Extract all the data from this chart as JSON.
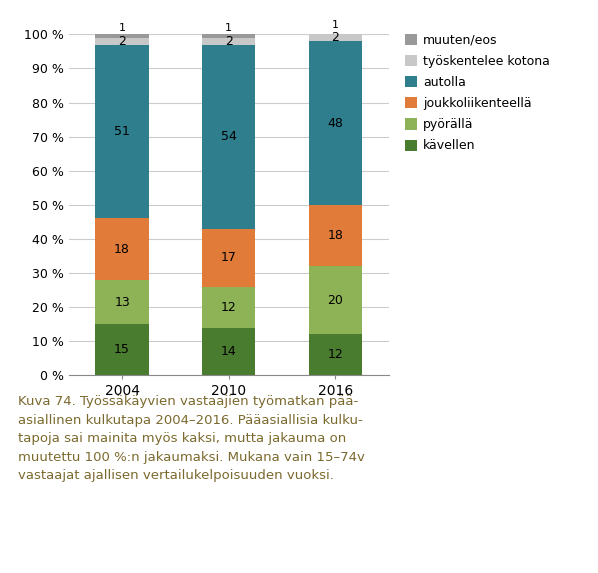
{
  "years": [
    "2004",
    "2010",
    "2016"
  ],
  "categories": [
    "kävellen",
    "pyörällä",
    "joukkoliikenteellä",
    "autolla",
    "työskentelee kotona",
    "muuten/eos"
  ],
  "values": {
    "kävellen": [
      15,
      14,
      12
    ],
    "pyörällä": [
      13,
      12,
      20
    ],
    "joukkoliikenteellä": [
      18,
      17,
      18
    ],
    "autolla": [
      51,
      54,
      48
    ],
    "työskentelee kotona": [
      2,
      2,
      2
    ],
    "muuten/eos": [
      1,
      1,
      1
    ]
  },
  "colors": {
    "kävellen": "#4a7c2f",
    "pyörällä": "#8db356",
    "joukkoliikenteellä": "#e07b3a",
    "autolla": "#2e7e8e",
    "työskentelee kotona": "#c8c8c8",
    "muuten/eos": "#999999"
  },
  "bar_width": 0.5,
  "ylim": [
    0,
    100
  ],
  "yticks": [
    0,
    10,
    20,
    30,
    40,
    50,
    60,
    70,
    80,
    90,
    100
  ],
  "ytick_labels": [
    "0 %",
    "10 %",
    "20 %",
    "30 %",
    "40 %",
    "50 %",
    "60 %",
    "70 %",
    "80 %",
    "90 %",
    "100 %"
  ],
  "caption_line1": "Kuva 74. Työssäkäyvien vastaajien työmatkan pää-",
  "caption_line2": "asiallinen kulkutapa 2004–2016. Pääasiallisia kulku-",
  "caption_line3": "tapoja sai mainita myös kaksi, mutta jakauma on",
  "caption_line4": "muutettu 100 %:n jakaumaksi. Mukana vain 15–74v",
  "caption_line5": "vastaajat ajallisen vertailukelpoisuuden vuoksi.",
  "caption_color": "#7b6a2e",
  "background_color": "#ffffff",
  "grid_color": "#cccccc",
  "label_small_val": 1,
  "label_skip_val": 2
}
